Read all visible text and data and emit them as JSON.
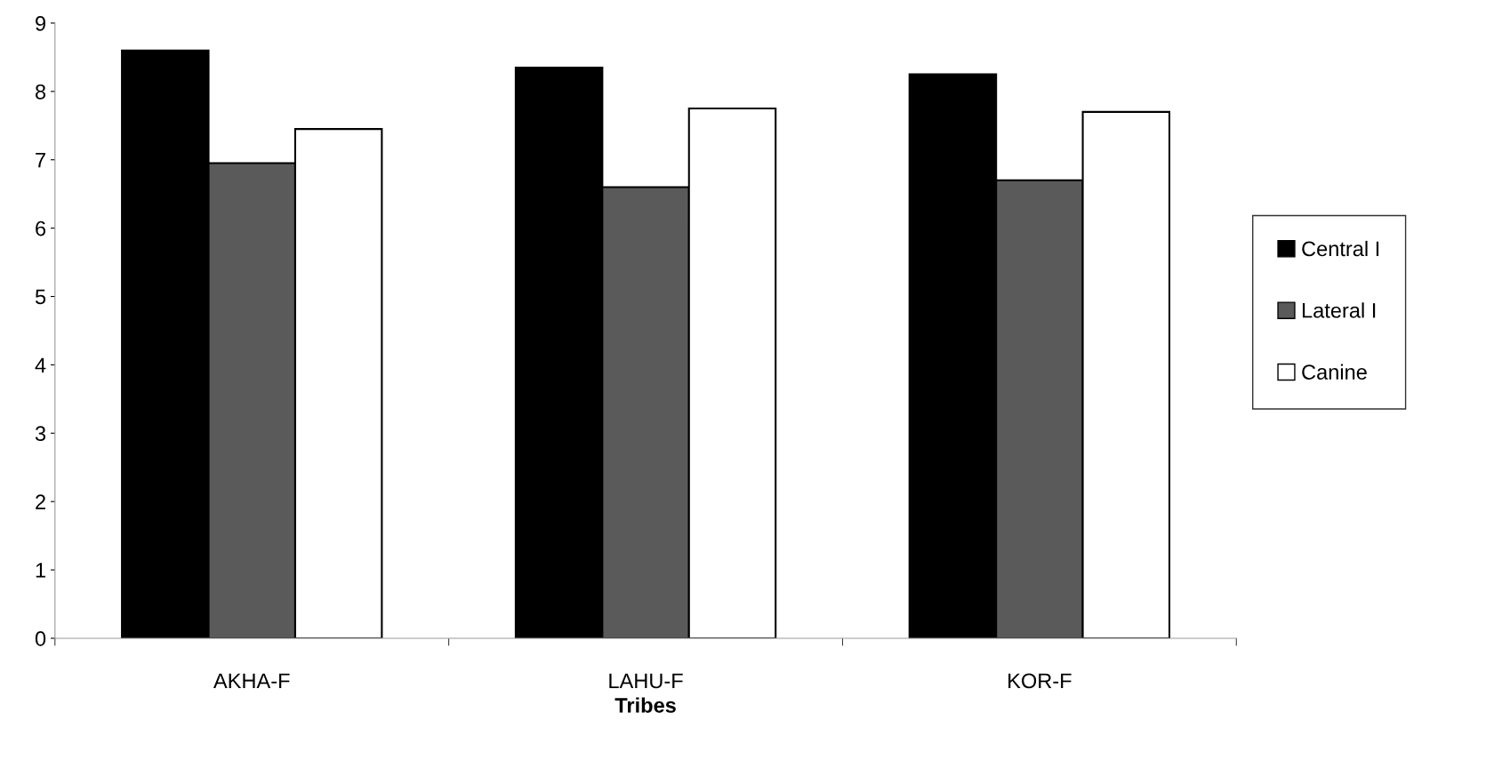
{
  "chart_data": {
    "type": "bar",
    "xlabel": "Tribes",
    "categories": [
      "AKHA-F",
      "LAHU-F",
      "KOR-F"
    ],
    "series": [
      {
        "name": "Central I",
        "color": "#000000",
        "values": [
          8.6,
          8.35,
          8.25
        ]
      },
      {
        "name": "Lateral I",
        "color": "#5a5a5a",
        "values": [
          6.95,
          6.6,
          6.7
        ]
      },
      {
        "name": "Canine",
        "color": "#ffffff",
        "values": [
          7.45,
          7.75,
          7.7
        ]
      }
    ],
    "ylim": [
      0,
      9
    ],
    "yticks": [
      0,
      1,
      2,
      3,
      4,
      5,
      6,
      7,
      8,
      9
    ],
    "grid": false,
    "legend": "right"
  }
}
